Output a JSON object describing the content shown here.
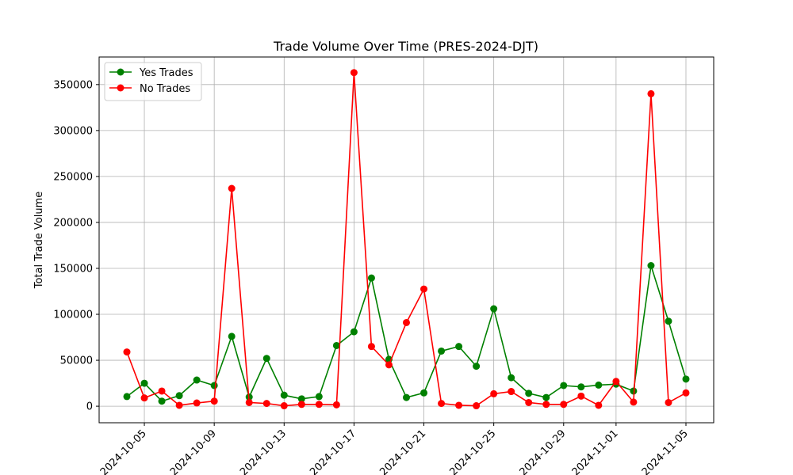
{
  "chart_data": {
    "type": "line",
    "title": "Trade Volume Over Time (PRES-2024-DJT)",
    "xlabel": "",
    "ylabel": "Total Trade Volume",
    "x": [
      "2024-10-04",
      "2024-10-05",
      "2024-10-06",
      "2024-10-07",
      "2024-10-08",
      "2024-10-09",
      "2024-10-10",
      "2024-10-11",
      "2024-10-12",
      "2024-10-13",
      "2024-10-14",
      "2024-10-15",
      "2024-10-16",
      "2024-10-17",
      "2024-10-18",
      "2024-10-19",
      "2024-10-20",
      "2024-10-21",
      "2024-10-22",
      "2024-10-23",
      "2024-10-24",
      "2024-10-25",
      "2024-10-26",
      "2024-10-27",
      "2024-10-28",
      "2024-10-29",
      "2024-10-30",
      "2024-10-31",
      "2024-11-01",
      "2024-11-02",
      "2024-11-03",
      "2024-11-04",
      "2024-11-05"
    ],
    "xticks": [
      "2024-10-05",
      "2024-10-09",
      "2024-10-13",
      "2024-10-17",
      "2024-10-21",
      "2024-10-25",
      "2024-10-29",
      "2024-11-01",
      "2024-11-05"
    ],
    "yticks": [
      0,
      50000,
      100000,
      150000,
      200000,
      250000,
      300000,
      350000
    ],
    "ylim": [
      -18000,
      380000
    ],
    "grid": true,
    "legend_position": "top-left",
    "series": [
      {
        "name": "Yes Trades",
        "color": "#008000",
        "values": [
          10500,
          25000,
          5500,
          11500,
          28500,
          22500,
          76000,
          10000,
          52000,
          12000,
          8000,
          10500,
          66000,
          81000,
          139500,
          51000,
          9500,
          14500,
          60000,
          65000,
          43500,
          106000,
          31000,
          14000,
          9500,
          22500,
          21000,
          23000,
          24000,
          16500,
          153000,
          92500,
          29500
        ]
      },
      {
        "name": "No Trades",
        "color": "#ff0000",
        "values": [
          59000,
          9000,
          16500,
          1000,
          3500,
          5500,
          237000,
          4000,
          3000,
          500,
          2000,
          2000,
          1500,
          363000,
          65000,
          45000,
          91000,
          127500,
          3000,
          1000,
          500,
          13500,
          16000,
          4000,
          2000,
          2000,
          11000,
          1000,
          27000,
          4500,
          340000,
          4000,
          14500
        ]
      }
    ]
  }
}
